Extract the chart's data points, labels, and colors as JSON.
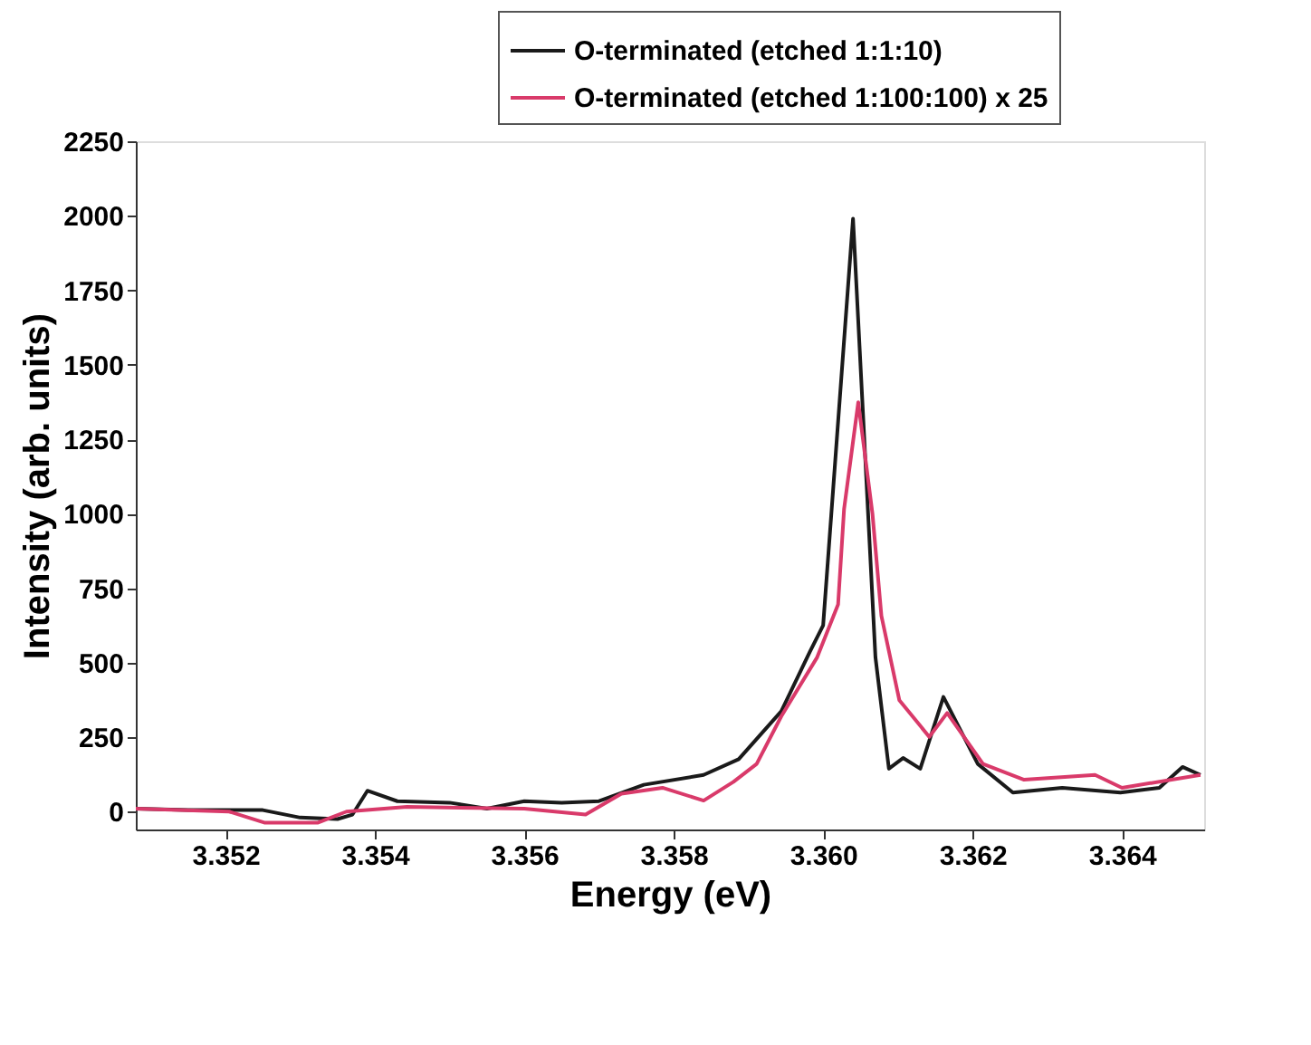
{
  "chart_data": {
    "type": "line",
    "xlabel": "Energy (eV)",
    "ylabel": "Intensity (arb. units)",
    "xlim": [
      3.3508,
      3.3651
    ],
    "xticks": [
      3.352,
      3.354,
      3.356,
      3.358,
      {
        "value": 3.36,
        "label": "3.360"
      },
      3.362,
      3.364
    ],
    "ylim": [
      -60,
      2250
    ],
    "yticks": [
      0,
      250,
      500,
      750,
      1000,
      1250,
      1500,
      1750,
      2000,
      2250
    ],
    "grid": false,
    "legend": "top right",
    "line_style": "solid",
    "marker": "none",
    "series": [
      {
        "name": "O-terminated (etched 1:1:10)",
        "color": "#1a1a1a",
        "x": [
          3.3508,
          3.3515,
          3.3525,
          3.353,
          3.3535,
          3.3537,
          3.3539,
          3.3543,
          3.355,
          3.3555,
          3.356,
          3.3565,
          3.357,
          3.3576,
          3.3584,
          3.35887,
          3.35944,
          3.35982,
          3.36,
          3.3604,
          3.3607,
          3.36088,
          3.36107,
          3.3613,
          3.36161,
          3.36207,
          3.36254,
          3.3632,
          3.36398,
          3.3645,
          3.36481,
          3.36505
        ],
        "values": [
          10,
          5,
          5,
          -20,
          -25,
          -10,
          70,
          35,
          30,
          10,
          35,
          30,
          35,
          90,
          123,
          176,
          337,
          535,
          625,
          1990,
          518,
          144,
          180,
          144,
          385,
          160,
          64,
          80,
          64,
          80,
          150,
          123
        ]
      },
      {
        "name": "O-terminated (etched 1:100:100) x 25",
        "color": "#d93a6a",
        "x": [
          3.3508,
          3.35205,
          3.35252,
          3.35324,
          3.35362,
          3.35443,
          3.356,
          3.35682,
          3.3573,
          3.35785,
          3.3584,
          3.3588,
          3.35911,
          3.35944,
          3.35992,
          3.3602,
          3.36028,
          3.36047,
          3.36066,
          3.36078,
          3.36102,
          3.36142,
          3.36166,
          3.36214,
          3.36269,
          3.36364,
          3.364,
          3.36505
        ],
        "values": [
          10,
          0,
          -37,
          -37,
          0,
          16,
          10,
          -10,
          60,
          80,
          37,
          100,
          160,
          320,
          518,
          695,
          1015,
          1374,
          1000,
          657,
          374,
          251,
          331,
          160,
          107,
          123,
          80,
          123
        ]
      }
    ]
  }
}
